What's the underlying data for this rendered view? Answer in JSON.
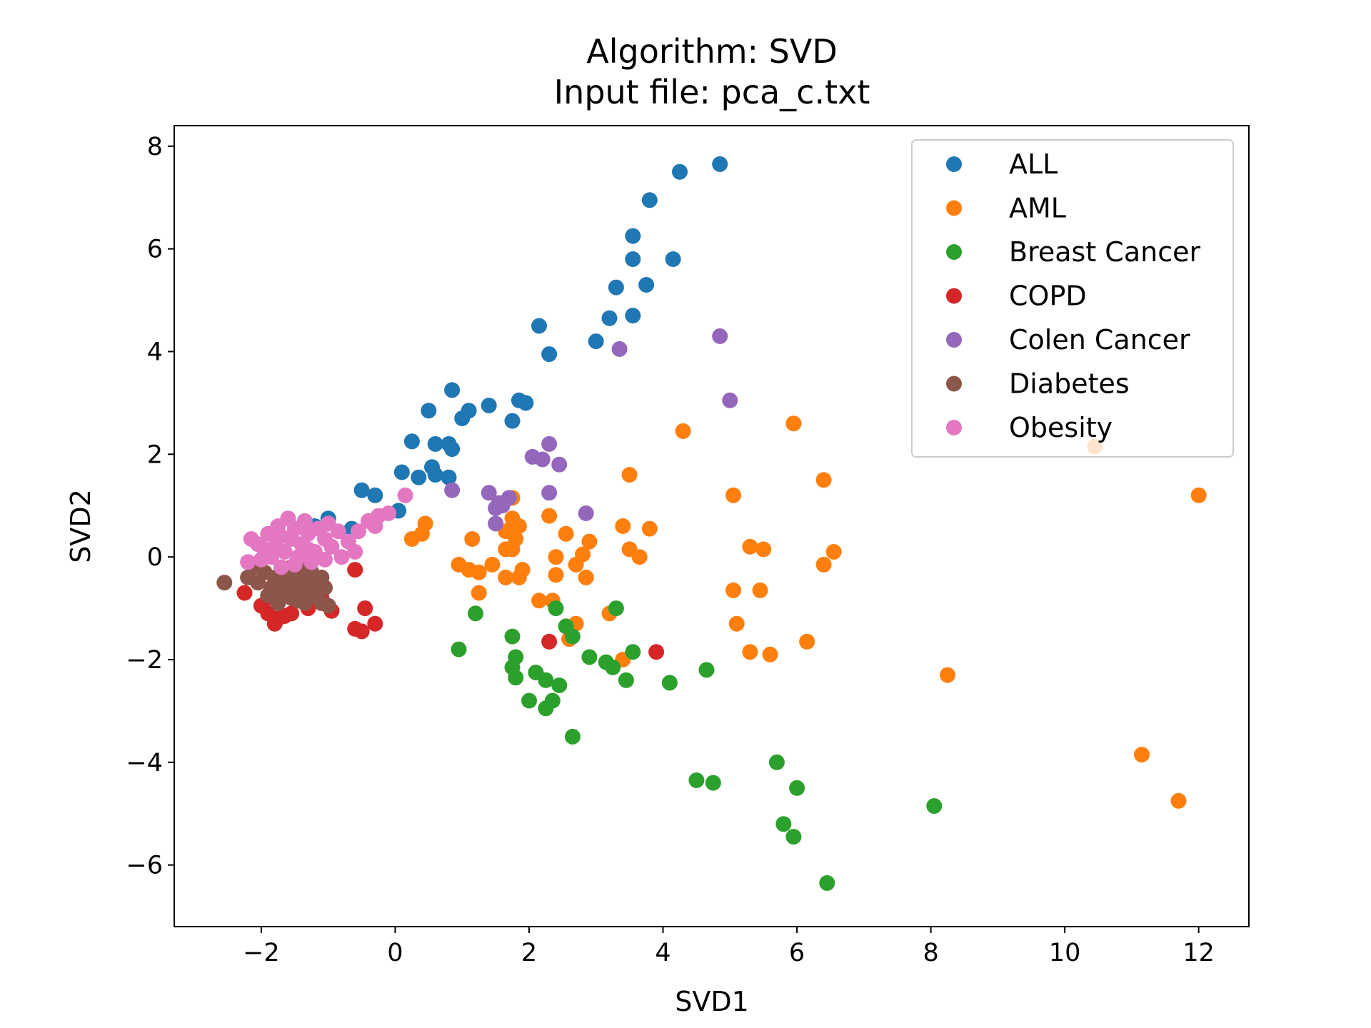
{
  "chart_data": {
    "type": "scatter",
    "title": "Algorithm: SVD",
    "subtitle": "Input file: pca_c.txt",
    "xlabel": "SVD1",
    "ylabel": "SVD2",
    "xlim": [
      -3.3,
      12.75
    ],
    "ylim": [
      -7.2,
      8.4
    ],
    "xticks": [
      -2,
      0,
      2,
      4,
      6,
      8,
      10,
      12
    ],
    "xtick_labels": [
      "−2",
      "0",
      "2",
      "4",
      "6",
      "8",
      "10",
      "12"
    ],
    "yticks": [
      -6,
      -4,
      -2,
      0,
      2,
      4,
      6,
      8
    ],
    "ytick_labels": [
      "−6",
      "−4",
      "−2",
      "0",
      "2",
      "4",
      "6",
      "8"
    ],
    "grid": false,
    "legend_position": "top-right",
    "series": [
      {
        "name": "ALL",
        "color": "#1f77b4",
        "points": [
          [
            4.85,
            7.65
          ],
          [
            4.25,
            7.5
          ],
          [
            3.8,
            6.95
          ],
          [
            3.55,
            6.25
          ],
          [
            3.55,
            5.8
          ],
          [
            4.15,
            5.8
          ],
          [
            3.75,
            5.3
          ],
          [
            3.3,
            5.25
          ],
          [
            3.2,
            4.65
          ],
          [
            3.55,
            4.7
          ],
          [
            2.15,
            4.5
          ],
          [
            2.3,
            3.95
          ],
          [
            3.0,
            4.2
          ],
          [
            0.85,
            3.25
          ],
          [
            1.0,
            2.7
          ],
          [
            1.1,
            2.85
          ],
          [
            1.4,
            2.95
          ],
          [
            1.85,
            3.05
          ],
          [
            1.95,
            3.0
          ],
          [
            0.5,
            2.85
          ],
          [
            1.75,
            2.65
          ],
          [
            0.25,
            2.25
          ],
          [
            0.6,
            2.2
          ],
          [
            0.8,
            2.2
          ],
          [
            0.85,
            2.1
          ],
          [
            0.1,
            1.65
          ],
          [
            0.35,
            1.55
          ],
          [
            0.55,
            1.75
          ],
          [
            0.6,
            1.6
          ],
          [
            0.8,
            1.55
          ],
          [
            -0.5,
            1.3
          ],
          [
            -0.3,
            1.2
          ],
          [
            0.05,
            0.9
          ],
          [
            -1.2,
            0.6
          ],
          [
            -1.0,
            0.75
          ],
          [
            -0.65,
            0.55
          ]
        ]
      },
      {
        "name": "AML",
        "color": "#ff7f0e",
        "points": [
          [
            12.0,
            1.2
          ],
          [
            10.45,
            2.15
          ],
          [
            11.15,
            -3.85
          ],
          [
            11.7,
            -4.75
          ],
          [
            8.25,
            -2.3
          ],
          [
            5.95,
            2.6
          ],
          [
            4.3,
            2.45
          ],
          [
            6.4,
            1.5
          ],
          [
            5.05,
            1.2
          ],
          [
            3.5,
            1.6
          ],
          [
            5.3,
            0.2
          ],
          [
            5.5,
            0.15
          ],
          [
            6.55,
            0.1
          ],
          [
            6.4,
            -0.15
          ],
          [
            5.05,
            -0.65
          ],
          [
            5.45,
            -0.65
          ],
          [
            5.1,
            -1.3
          ],
          [
            5.3,
            -1.85
          ],
          [
            5.6,
            -1.9
          ],
          [
            6.15,
            -1.65
          ],
          [
            3.4,
            0.6
          ],
          [
            3.8,
            0.55
          ],
          [
            3.5,
            0.15
          ],
          [
            3.65,
            0.0
          ],
          [
            3.4,
            -2.0
          ],
          [
            3.2,
            -1.1
          ],
          [
            2.3,
            0.8
          ],
          [
            2.55,
            0.45
          ],
          [
            2.9,
            0.3
          ],
          [
            2.4,
            0.0
          ],
          [
            2.8,
            0.05
          ],
          [
            2.7,
            -0.15
          ],
          [
            2.4,
            -0.35
          ],
          [
            2.85,
            -0.4
          ],
          [
            2.15,
            -0.85
          ],
          [
            2.35,
            -0.85
          ],
          [
            2.7,
            -1.3
          ],
          [
            2.6,
            -1.6
          ],
          [
            1.75,
            1.15
          ],
          [
            1.75,
            0.75
          ],
          [
            1.85,
            0.6
          ],
          [
            1.65,
            0.5
          ],
          [
            1.8,
            0.35
          ],
          [
            1.65,
            0.15
          ],
          [
            1.75,
            0.15
          ],
          [
            1.45,
            -0.15
          ],
          [
            1.9,
            -0.25
          ],
          [
            1.65,
            -0.4
          ],
          [
            1.85,
            -0.4
          ],
          [
            1.15,
            0.35
          ],
          [
            0.95,
            -0.15
          ],
          [
            1.1,
            -0.25
          ],
          [
            1.25,
            -0.3
          ],
          [
            1.25,
            -0.7
          ],
          [
            0.45,
            0.65
          ],
          [
            0.4,
            0.45
          ],
          [
            0.25,
            0.35
          ]
        ]
      },
      {
        "name": "Breast Cancer",
        "color": "#2ca02c",
        "points": [
          [
            6.45,
            -6.35
          ],
          [
            5.95,
            -5.45
          ],
          [
            5.8,
            -5.2
          ],
          [
            8.05,
            -4.85
          ],
          [
            6.0,
            -4.5
          ],
          [
            5.7,
            -4.0
          ],
          [
            4.5,
            -4.35
          ],
          [
            4.75,
            -4.4
          ],
          [
            2.65,
            -3.5
          ],
          [
            2.4,
            -1.0
          ],
          [
            3.3,
            -1.0
          ],
          [
            2.55,
            -1.35
          ],
          [
            2.65,
            -1.55
          ],
          [
            3.55,
            -1.85
          ],
          [
            2.9,
            -1.95
          ],
          [
            3.15,
            -2.05
          ],
          [
            3.25,
            -2.15
          ],
          [
            3.45,
            -2.4
          ],
          [
            4.1,
            -2.45
          ],
          [
            4.65,
            -2.2
          ],
          [
            1.75,
            -1.55
          ],
          [
            1.8,
            -1.95
          ],
          [
            1.75,
            -2.15
          ],
          [
            1.8,
            -2.35
          ],
          [
            2.1,
            -2.25
          ],
          [
            2.25,
            -2.4
          ],
          [
            2.45,
            -2.5
          ],
          [
            2.35,
            -2.8
          ],
          [
            2.0,
            -2.8
          ],
          [
            2.25,
            -2.95
          ],
          [
            0.95,
            -1.8
          ],
          [
            1.2,
            -1.1
          ]
        ]
      },
      {
        "name": "COPD",
        "color": "#d62728",
        "points": [
          [
            3.9,
            -1.85
          ],
          [
            2.3,
            -1.65
          ],
          [
            -0.45,
            -1.0
          ],
          [
            -0.3,
            -1.3
          ],
          [
            -0.5,
            -1.45
          ],
          [
            -0.6,
            -1.4
          ],
          [
            -0.6,
            -0.25
          ],
          [
            -0.95,
            -1.05
          ],
          [
            -1.1,
            -0.8
          ],
          [
            -1.3,
            -1.0
          ],
          [
            -1.55,
            -1.1
          ],
          [
            -1.65,
            -1.15
          ],
          [
            -1.75,
            -1.2
          ],
          [
            -1.8,
            -1.3
          ],
          [
            -1.9,
            -1.1
          ],
          [
            -2.0,
            -0.95
          ],
          [
            -2.25,
            -0.7
          ],
          [
            -1.4,
            -0.6
          ],
          [
            -1.6,
            -0.7
          ],
          [
            -1.9,
            -0.8
          ]
        ]
      },
      {
        "name": "Colen Cancer",
        "color": "#9467bd",
        "points": [
          [
            4.85,
            4.3
          ],
          [
            3.35,
            4.05
          ],
          [
            5.0,
            3.05
          ],
          [
            2.3,
            2.2
          ],
          [
            2.05,
            1.95
          ],
          [
            2.2,
            1.9
          ],
          [
            2.45,
            1.8
          ],
          [
            0.85,
            1.3
          ],
          [
            1.4,
            1.25
          ],
          [
            2.3,
            1.25
          ],
          [
            1.7,
            1.15
          ],
          [
            1.55,
            1.05
          ],
          [
            1.6,
            1.0
          ],
          [
            1.5,
            0.95
          ],
          [
            2.85,
            0.85
          ],
          [
            1.5,
            0.65
          ]
        ]
      },
      {
        "name": "Diabetes",
        "color": "#8c564b",
        "points": [
          [
            -2.55,
            -0.5
          ],
          [
            -2.2,
            -0.4
          ],
          [
            -2.05,
            -0.5
          ],
          [
            -1.95,
            -0.3
          ],
          [
            -1.85,
            -0.6
          ],
          [
            -1.8,
            -0.4
          ],
          [
            -1.7,
            -0.7
          ],
          [
            -1.65,
            -0.5
          ],
          [
            -1.6,
            -0.3
          ],
          [
            -1.55,
            -0.8
          ],
          [
            -1.5,
            -0.55
          ],
          [
            -1.45,
            -0.4
          ],
          [
            -1.4,
            -0.65
          ],
          [
            -1.35,
            -0.9
          ],
          [
            -1.3,
            -0.5
          ],
          [
            -1.25,
            -0.3
          ],
          [
            -1.2,
            -0.75
          ],
          [
            -1.15,
            -0.55
          ],
          [
            -1.1,
            -0.9
          ],
          [
            -1.05,
            -0.6
          ],
          [
            -1.0,
            -0.95
          ],
          [
            -1.9,
            -0.75
          ],
          [
            -2.1,
            -0.2
          ],
          [
            -1.75,
            -0.9
          ],
          [
            -1.6,
            -0.6
          ],
          [
            -1.45,
            -0.85
          ],
          [
            -1.3,
            -0.7
          ],
          [
            -1.1,
            -0.4
          ],
          [
            -1.35,
            -0.25
          ],
          [
            -1.55,
            -0.2
          ]
        ]
      },
      {
        "name": "Obesity",
        "color": "#e377c2",
        "points": [
          [
            0.15,
            1.2
          ],
          [
            -0.1,
            0.85
          ],
          [
            -0.25,
            0.8
          ],
          [
            -0.4,
            0.7
          ],
          [
            -0.3,
            0.6
          ],
          [
            -0.55,
            0.5
          ],
          [
            -0.6,
            0.1
          ],
          [
            -0.7,
            0.3
          ],
          [
            -0.85,
            0.5
          ],
          [
            -0.95,
            0.2
          ],
          [
            -1.0,
            0.65
          ],
          [
            -1.05,
            0.35
          ],
          [
            -1.15,
            0.55
          ],
          [
            -1.2,
            0.1
          ],
          [
            -1.3,
            0.45
          ],
          [
            -1.35,
            0.7
          ],
          [
            -1.4,
            0.25
          ],
          [
            -1.45,
            0.0
          ],
          [
            -1.5,
            0.55
          ],
          [
            -1.55,
            0.35
          ],
          [
            -1.6,
            0.75
          ],
          [
            -1.65,
            0.1
          ],
          [
            -1.7,
            0.4
          ],
          [
            -1.75,
            0.6
          ],
          [
            -1.8,
            0.2
          ],
          [
            -1.85,
            0.0
          ],
          [
            -1.9,
            0.45
          ],
          [
            -1.95,
            0.15
          ],
          [
            -2.0,
            -0.05
          ],
          [
            -2.05,
            0.25
          ],
          [
            -2.15,
            0.35
          ],
          [
            -2.2,
            -0.1
          ],
          [
            -1.5,
            -0.15
          ],
          [
            -1.25,
            -0.1
          ],
          [
            -1.05,
            -0.05
          ],
          [
            -1.7,
            -0.2
          ],
          [
            -1.3,
            0.15
          ],
          [
            -0.8,
            0.0
          ]
        ]
      }
    ]
  }
}
